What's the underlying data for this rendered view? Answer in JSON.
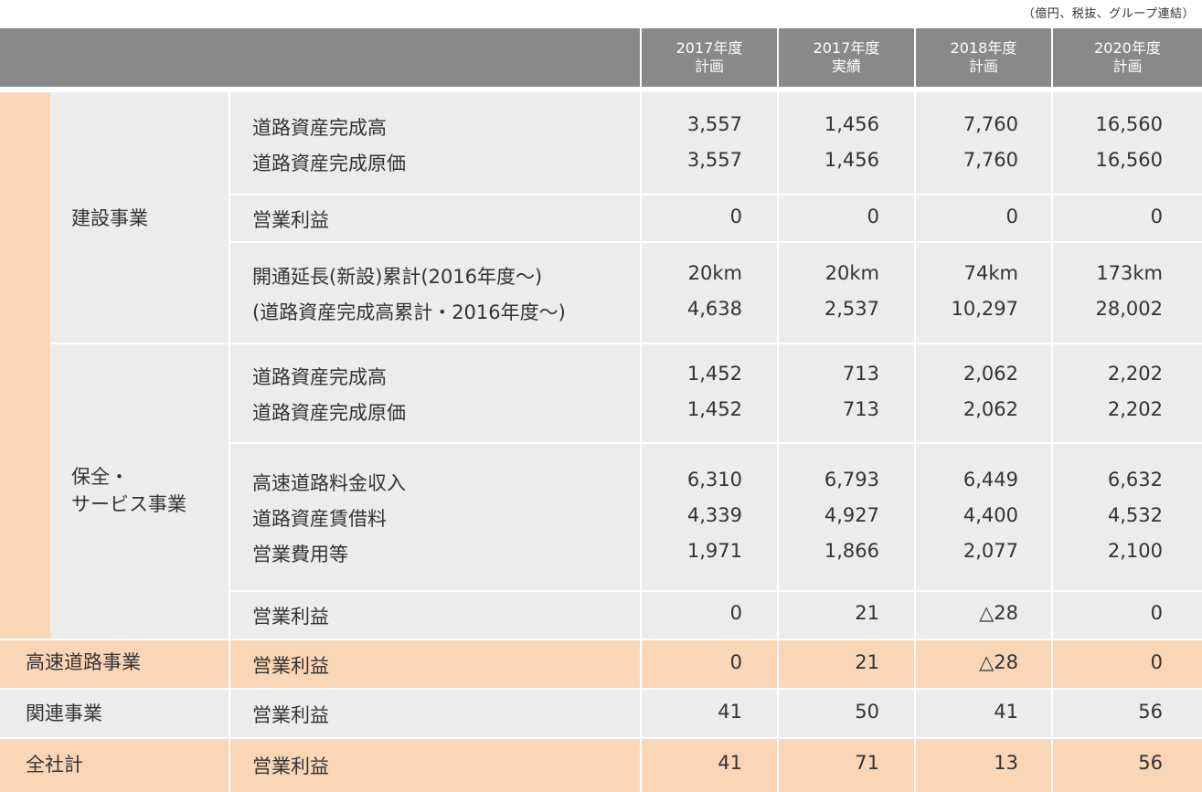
{
  "unit_note": "（億円、税抜、グループ連結）",
  "columns": [
    {
      "line1": "2017年度",
      "line2": "計画"
    },
    {
      "line1": "2017年度",
      "line2": "実績"
    },
    {
      "line1": "2018年度",
      "line2": "計画"
    },
    {
      "line1": "2020年度",
      "line2": "計画"
    }
  ],
  "segments": {
    "construction": "建設事業",
    "maintenance_line1": "保全・",
    "maintenance_line2": "サービス事業",
    "expressway": "高速道路事業",
    "related": "関連事業",
    "total": "全社計"
  },
  "rows": [
    {
      "label": "道路資産完成高",
      "values": [
        "3,557",
        "1,456",
        "7,760",
        "16,560"
      ]
    },
    {
      "label": "道路資産完成原価",
      "values": [
        "3,557",
        "1,456",
        "7,760",
        "16,560"
      ]
    },
    {
      "label": "営業利益",
      "values": [
        "0",
        "0",
        "0",
        "0"
      ]
    },
    {
      "label": "開通延長(新設)累計(2016年度～)",
      "values": [
        "20km",
        "20km",
        "74km",
        "173km"
      ]
    },
    {
      "label": "(道路資産完成高累計・2016年度～)",
      "values": [
        "4,638",
        "2,537",
        "10,297",
        "28,002"
      ]
    },
    {
      "label": "道路資産完成高",
      "values": [
        "1,452",
        "713",
        "2,062",
        "2,202"
      ]
    },
    {
      "label": "道路資産完成原価",
      "values": [
        "1,452",
        "713",
        "2,062",
        "2,202"
      ]
    },
    {
      "label": "高速道路料金収入",
      "values": [
        "6,310",
        "6,793",
        "6,449",
        "6,632"
      ]
    },
    {
      "label": "道路資産賃借料",
      "values": [
        "4,339",
        "4,927",
        "4,400",
        "4,532"
      ]
    },
    {
      "label": "営業費用等",
      "values": [
        "1,971",
        "1,866",
        "2,077",
        "2,100"
      ]
    },
    {
      "label": "営業利益",
      "values": [
        "0",
        "21",
        "△28",
        "0"
      ]
    },
    {
      "label": "営業利益",
      "values": [
        "0",
        "21",
        "△28",
        "0"
      ]
    },
    {
      "label": "営業利益",
      "values": [
        "41",
        "50",
        "41",
        "56"
      ]
    },
    {
      "label": "営業利益",
      "values": [
        "41",
        "71",
        "13",
        "56"
      ]
    }
  ],
  "colors": {
    "header_bg": "#898989",
    "orange": "#fbd6b6",
    "grey": "#ececec"
  }
}
